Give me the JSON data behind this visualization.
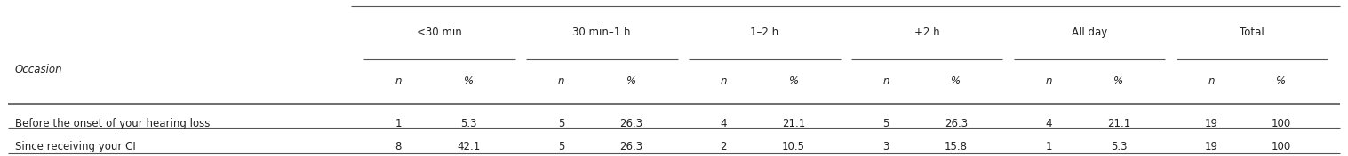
{
  "figsize": [
    15.17,
    1.76
  ],
  "dpi": 100,
  "col_groups": [
    "<30 min",
    "30 min–1 h",
    "1–2 h",
    "+2 h",
    "All day",
    "Total"
  ],
  "sub_cols": [
    "n",
    "%"
  ],
  "row_label_header": "Occasion",
  "rows": [
    {
      "label": "Before the onset of your hearing loss",
      "values": [
        "1",
        "5.3",
        "5",
        "26.3",
        "4",
        "21.1",
        "5",
        "26.3",
        "4",
        "21.1",
        "19",
        "100"
      ]
    },
    {
      "label": "Since receiving your CI",
      "values": [
        "8",
        "42.1",
        "5",
        "26.3",
        "2",
        "10.5",
        "3",
        "15.8",
        "1",
        "5.3",
        "19",
        "100"
      ]
    }
  ],
  "font_size": 8.5,
  "text_color": "#222222",
  "line_color": "#555555",
  "background_color": "#ffffff"
}
